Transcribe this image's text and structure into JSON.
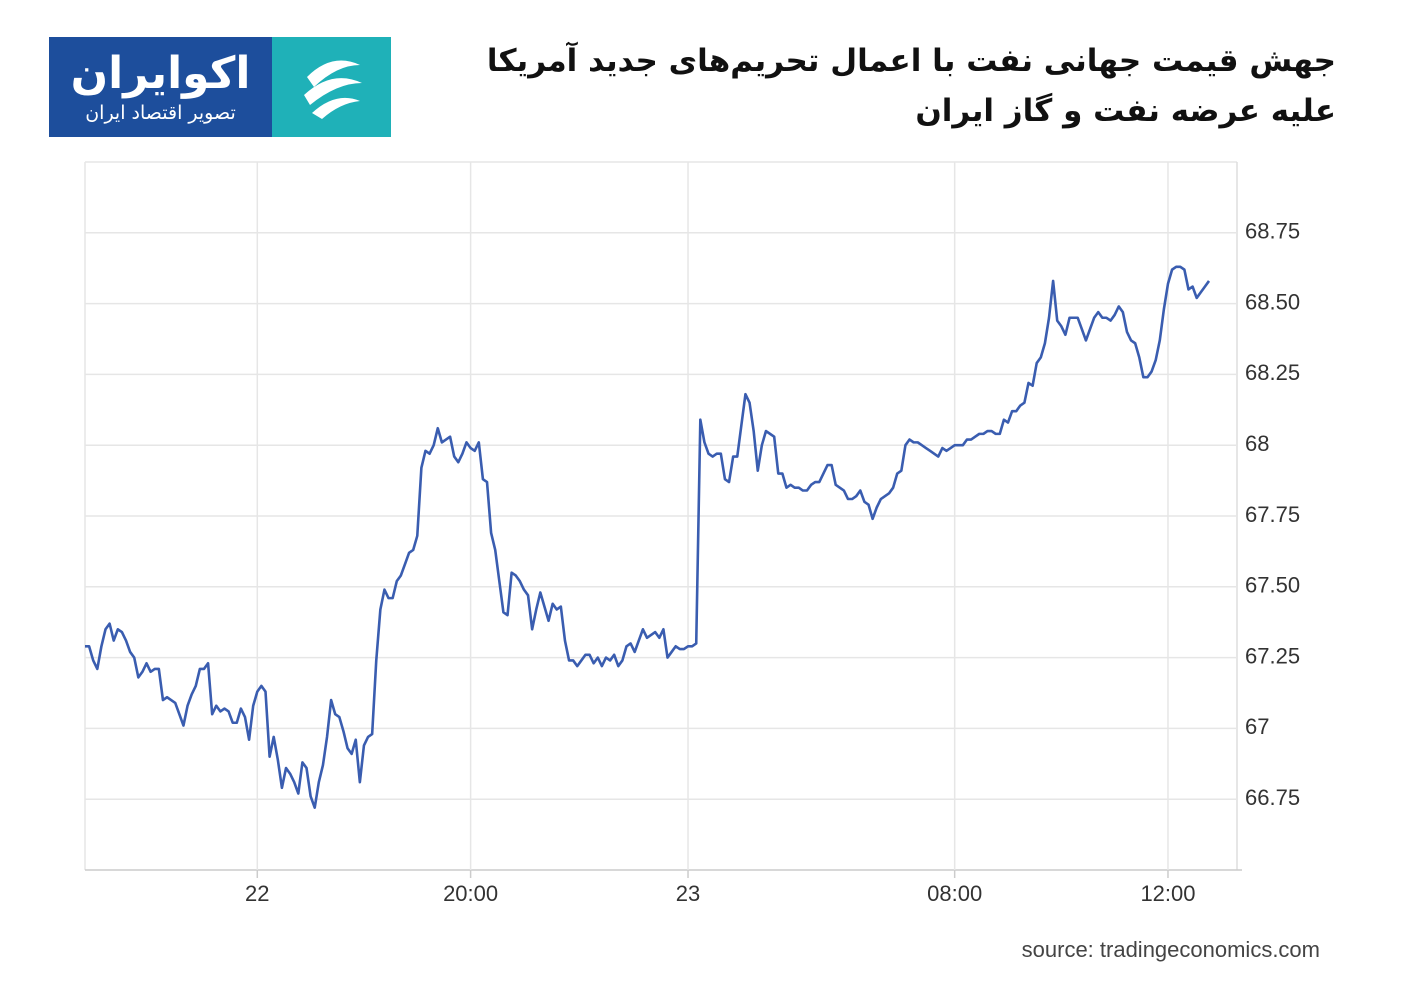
{
  "logo": {
    "name": "اکوایران",
    "tagline": "تصویر اقتصاد ایران"
  },
  "chart_data": {
    "type": "line",
    "title": [
      "جهش قیمت جهانی نفت با اعمال تحریم‌های جدید آمریکا",
      "علیه عرضه نفت و گاز ایران"
    ],
    "source": "source: tradingeconomics.com",
    "categories": [
      null,
      null,
      null,
      null,
      null,
      null,
      null,
      null,
      null,
      null,
      null,
      null,
      null,
      null,
      null,
      null,
      null,
      null,
      null,
      null,
      null,
      null,
      null,
      null,
      null,
      null,
      null,
      null,
      null,
      null,
      null,
      null,
      null,
      null,
      null,
      null,
      null,
      null,
      null,
      null,
      null,
      null,
      "22",
      null,
      null,
      null,
      null,
      null,
      null,
      null,
      null,
      null,
      null,
      null,
      null,
      null,
      null,
      null,
      null,
      null,
      null,
      null,
      null,
      null,
      null,
      null,
      null,
      null,
      null,
      null,
      null,
      null,
      null,
      null,
      null,
      null,
      null,
      null,
      null,
      null,
      null,
      null,
      null,
      null,
      null,
      null,
      null,
      null,
      null,
      null,
      null,
      null,
      null,
      null,
      "20:00",
      null,
      null,
      null,
      null,
      null,
      null,
      null,
      null,
      null,
      null,
      null,
      null,
      null,
      null,
      null,
      null,
      null,
      null,
      null,
      null,
      null,
      null,
      null,
      null,
      null,
      null,
      null,
      null,
      null,
      null,
      null,
      null,
      null,
      null,
      null,
      null,
      null,
      null,
      null,
      null,
      null,
      null,
      null,
      null,
      null,
      null,
      null,
      null,
      null,
      null,
      null,
      null,
      "23",
      null,
      null,
      null,
      null,
      null,
      null,
      null,
      null,
      null,
      null,
      null,
      null,
      null,
      null,
      null,
      null,
      null,
      null,
      null,
      null,
      null,
      null,
      null,
      null,
      null,
      null,
      null,
      null,
      null,
      null,
      null,
      null,
      null,
      null,
      null,
      null,
      null,
      null,
      null,
      null,
      null,
      null,
      null,
      null,
      null,
      null,
      null,
      null,
      null,
      null,
      null,
      null,
      null,
      null,
      null,
      null,
      null,
      null,
      null,
      null,
      null,
      null,
      null,
      null,
      "08:00",
      null,
      null,
      null,
      null,
      null,
      null,
      null,
      null,
      null,
      null,
      null,
      null,
      null,
      null,
      null,
      null,
      null,
      null,
      null,
      null,
      null,
      null,
      null,
      null,
      null,
      null,
      null,
      null,
      null,
      null,
      null,
      null,
      null,
      null,
      null,
      null,
      null,
      null,
      null,
      null,
      null,
      null,
      null,
      null,
      null,
      null,
      null,
      null,
      null,
      null,
      null,
      "12:00",
      null,
      null,
      null,
      null,
      null,
      null,
      null,
      null,
      null,
      null
    ],
    "series": [
      {
        "color": "#3a5db0",
        "values": [
          67.29,
          67.29,
          67.24,
          67.21,
          67.29,
          67.35,
          67.37,
          67.31,
          67.35,
          67.34,
          67.31,
          67.27,
          67.25,
          67.18,
          67.2,
          67.23,
          67.2,
          67.21,
          67.21,
          67.1,
          67.11,
          67.1,
          67.09,
          67.05,
          67.01,
          67.08,
          67.12,
          67.15,
          67.21,
          67.21,
          67.23,
          67.05,
          67.08,
          67.06,
          67.07,
          67.06,
          67.02,
          67.02,
          67.07,
          67.04,
          66.96,
          67.08,
          67.13,
          67.15,
          67.13,
          66.9,
          66.97,
          66.89,
          66.79,
          66.86,
          66.84,
          66.81,
          66.77,
          66.88,
          66.86,
          66.76,
          66.72,
          66.81,
          66.87,
          66.97,
          67.1,
          67.05,
          67.04,
          66.99,
          66.93,
          66.91,
          66.96,
          66.81,
          66.94,
          66.97,
          66.98,
          67.24,
          67.42,
          67.49,
          67.46,
          67.46,
          67.52,
          67.54,
          67.58,
          67.62,
          67.63,
          67.68,
          67.92,
          67.98,
          67.97,
          68.0,
          68.06,
          68.01,
          68.02,
          68.03,
          67.96,
          67.94,
          67.97,
          68.01,
          67.99,
          67.98,
          68.01,
          67.88,
          67.87,
          67.69,
          67.63,
          67.52,
          67.41,
          67.4,
          67.55,
          67.54,
          67.52,
          67.49,
          67.47,
          67.35,
          67.42,
          67.48,
          67.43,
          67.38,
          67.44,
          67.42,
          67.43,
          67.31,
          67.24,
          67.24,
          67.22,
          67.24,
          67.26,
          67.26,
          67.23,
          67.25,
          67.22,
          67.25,
          67.24,
          67.26,
          67.22,
          67.24,
          67.29,
          67.3,
          67.27,
          67.31,
          67.35,
          67.32,
          67.33,
          67.34,
          67.32,
          67.35,
          67.25,
          67.27,
          67.29,
          67.28,
          67.28,
          67.29,
          67.29,
          67.3,
          68.09,
          68.01,
          67.97,
          67.96,
          67.97,
          67.97,
          67.88,
          67.87,
          67.96,
          67.96,
          68.07,
          68.18,
          68.15,
          68.05,
          67.91,
          68.0,
          68.05,
          68.04,
          68.03,
          67.9,
          67.9,
          67.85,
          67.86,
          67.85,
          67.85,
          67.84,
          67.84,
          67.86,
          67.87,
          67.87,
          67.9,
          67.93,
          67.93,
          67.86,
          67.85,
          67.84,
          67.81,
          67.81,
          67.82,
          67.84,
          67.8,
          67.79,
          67.74,
          67.78,
          67.81,
          67.82,
          67.83,
          67.85,
          67.9,
          67.91,
          68.0,
          68.02,
          68.01,
          68.01,
          68.0,
          67.99,
          67.98,
          67.97,
          67.96,
          67.99,
          67.98,
          67.99,
          68.0,
          68.0,
          68.0,
          68.02,
          68.02,
          68.03,
          68.04,
          68.04,
          68.05,
          68.05,
          68.04,
          68.04,
          68.09,
          68.08,
          68.12,
          68.12,
          68.14,
          68.15,
          68.22,
          68.21,
          68.29,
          68.31,
          68.36,
          68.45,
          68.58,
          68.44,
          68.42,
          68.39,
          68.45,
          68.45,
          68.45,
          68.41,
          68.37,
          68.41,
          68.45,
          68.47,
          68.45,
          68.45,
          68.44,
          68.46,
          68.49,
          68.47,
          68.4,
          68.37,
          68.36,
          68.31,
          68.24,
          68.24,
          68.26,
          68.3,
          68.37,
          68.48,
          68.57,
          68.62,
          68.63,
          68.63,
          68.62,
          68.55,
          68.56,
          68.52,
          68.54,
          68.56,
          68.58
        ]
      }
    ],
    "ylim": [
      66.5,
      69.0
    ],
    "yticks": [
      66.75,
      67,
      67.25,
      {
        "value": 67.5,
        "label": "67.50"
      },
      67.75,
      68,
      68.25,
      {
        "value": 68.5,
        "label": "68.50"
      },
      68.75
    ],
    "grid": true
  }
}
